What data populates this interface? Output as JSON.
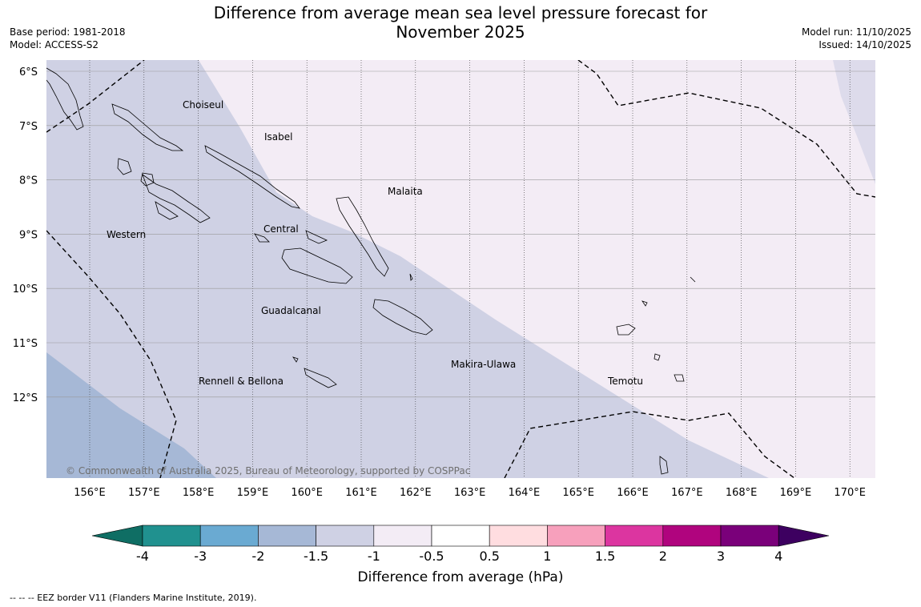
{
  "title_line1": "Difference from average mean sea level pressure forecast for",
  "title_line2": "November 2025",
  "base_period": "Base period: 1981-2018",
  "model": "Model: ACCESS-S2",
  "model_run": "Model run: 11/10/2025",
  "issued": "Issued: 14/10/2025",
  "copyright": "© Commonwealth of Australia 2025, Bureau of Meteorology, supported by COSPPac",
  "footnote": "--  --  -- EEZ border V11 (Flanders Marine Institute, 2019).",
  "map": {
    "lon_labels": [
      "156°E",
      "157°E",
      "158°E",
      "159°E",
      "160°E",
      "161°E",
      "162°E",
      "163°E",
      "164°E",
      "165°E",
      "166°E",
      "167°E",
      "168°E",
      "169°E",
      "170°E"
    ],
    "lat_labels": [
      "6°S",
      "7°S",
      "8°S",
      "9°S",
      "10°S",
      "11°S",
      "12°S"
    ],
    "regions": [
      {
        "name": "Choiseul"
      },
      {
        "name": "Isabel"
      },
      {
        "name": "Malaita"
      },
      {
        "name": "Western"
      },
      {
        "name": "Central"
      },
      {
        "name": "Guadalcanal"
      },
      {
        "name": "Makira-Ulawa"
      },
      {
        "name": "Temotu"
      },
      {
        "name": "Rennell & Bellona"
      }
    ],
    "shading_colors": {
      "minus_2": "#a6b8d6",
      "minus_1_5": "#cfd1e4",
      "minus_1": "#f3ecf5"
    }
  },
  "colorbar": {
    "label": "Difference from average (hPa)",
    "ticks": [
      "-4",
      "-3",
      "-2",
      "-1.5",
      "-1",
      "-0.5",
      "0.5",
      "1",
      "1.5",
      "2",
      "3",
      "4"
    ],
    "under_color": "#0f6e64",
    "over_color": "#3d0060",
    "colors": [
      "#20918f",
      "#6aaad2",
      "#a6b8d6",
      "#cfd1e4",
      "#f3ecf5",
      "#ffffff",
      "#ffdde0",
      "#f7a0bc",
      "#dc35a0",
      "#b0047e",
      "#7a007a"
    ]
  }
}
